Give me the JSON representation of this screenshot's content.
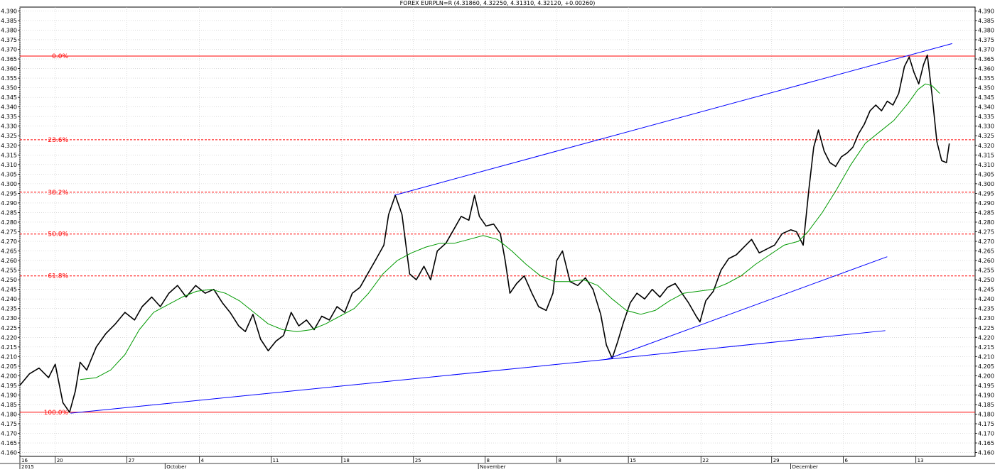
{
  "chart_data": {
    "type": "line",
    "title": "FOREX EURPLN=R (4.31860, 4.32250, 4.31310, 4.32120, +0.00260)",
    "grid": true,
    "ylim": [
      4.158,
      4.392
    ],
    "y_ticks": [
      "4.160",
      "4.165",
      "4.170",
      "4.175",
      "4.180",
      "4.185",
      "4.190",
      "4.195",
      "4.200",
      "4.205",
      "4.210",
      "4.215",
      "4.220",
      "4.225",
      "4.230",
      "4.235",
      "4.240",
      "4.245",
      "4.250",
      "4.255",
      "4.260",
      "4.265",
      "4.270",
      "4.275",
      "4.280",
      "4.285",
      "4.290",
      "4.295",
      "4.300",
      "4.305",
      "4.310",
      "4.315",
      "4.320",
      "4.325",
      "4.330",
      "4.335",
      "4.340",
      "4.345",
      "4.350",
      "4.355",
      "4.360",
      "4.365",
      "4.370",
      "4.375",
      "4.380",
      "4.385",
      "4.390"
    ],
    "x_range": [
      0,
      100
    ],
    "x_ticks": [
      {
        "label": "16",
        "x": 0
      },
      {
        "label": "20",
        "x": 3.7
      },
      {
        "label": "27",
        "x": 11.2
      },
      {
        "label": "4",
        "x": 18.8
      },
      {
        "label": "11",
        "x": 26.3
      },
      {
        "label": "18",
        "x": 33.7
      },
      {
        "label": "25",
        "x": 41.2
      },
      {
        "label": "8",
        "x": 48.7
      },
      {
        "label": "8",
        "x": 56.2
      },
      {
        "label": "15",
        "x": 63.7
      },
      {
        "label": "22",
        "x": 71.3
      },
      {
        "label": "29",
        "x": 78.7
      },
      {
        "label": "6",
        "x": 86.2
      },
      {
        "label": "13",
        "x": 93.8
      }
    ],
    "bottom_labels": [
      {
        "label": "2015",
        "x": 0
      },
      {
        "label": "October",
        "x": 15.2
      },
      {
        "label": "November",
        "x": 48.0
      },
      {
        "label": "December",
        "x": 80.7
      }
    ],
    "series": [
      {
        "color": "#000000",
        "points": [
          [
            0,
            4.195
          ],
          [
            1,
            4.201
          ],
          [
            2,
            4.204
          ],
          [
            3,
            4.199
          ],
          [
            3.7,
            4.206
          ],
          [
            4.5,
            4.186
          ],
          [
            5.2,
            4.181
          ],
          [
            5.8,
            4.192
          ],
          [
            6.3,
            4.207
          ],
          [
            7,
            4.203
          ],
          [
            8,
            4.215
          ],
          [
            9,
            4.222
          ],
          [
            10,
            4.227
          ],
          [
            11,
            4.233
          ],
          [
            12,
            4.229
          ],
          [
            12.8,
            4.236
          ],
          [
            13.8,
            4.241
          ],
          [
            14.7,
            4.236
          ],
          [
            15.6,
            4.243
          ],
          [
            16.5,
            4.247
          ],
          [
            17.4,
            4.241
          ],
          [
            18.4,
            4.247
          ],
          [
            19.4,
            4.243
          ],
          [
            20.3,
            4.245
          ],
          [
            21.2,
            4.238
          ],
          [
            22,
            4.233
          ],
          [
            22.9,
            4.226
          ],
          [
            23.6,
            4.223
          ],
          [
            24.4,
            4.232
          ],
          [
            25.2,
            4.219
          ],
          [
            26,
            4.213
          ],
          [
            26.8,
            4.218
          ],
          [
            27.6,
            4.221
          ],
          [
            28.4,
            4.233
          ],
          [
            29.2,
            4.226
          ],
          [
            30,
            4.229
          ],
          [
            30.8,
            4.224
          ],
          [
            31.6,
            4.231
          ],
          [
            32.4,
            4.229
          ],
          [
            33.2,
            4.236
          ],
          [
            34,
            4.233
          ],
          [
            34.8,
            4.243
          ],
          [
            35.6,
            4.246
          ],
          [
            36.4,
            4.253
          ],
          [
            37.2,
            4.26
          ],
          [
            38.1,
            4.268
          ],
          [
            38.6,
            4.284
          ],
          [
            39.3,
            4.294
          ],
          [
            40,
            4.284
          ],
          [
            40.8,
            4.253
          ],
          [
            41.5,
            4.25
          ],
          [
            42.3,
            4.257
          ],
          [
            43,
            4.25
          ],
          [
            43.7,
            4.265
          ],
          [
            44.6,
            4.269
          ],
          [
            45.4,
            4.276
          ],
          [
            46.2,
            4.283
          ],
          [
            47,
            4.281
          ],
          [
            47.6,
            4.294
          ],
          [
            48.1,
            4.283
          ],
          [
            48.8,
            4.278
          ],
          [
            49.6,
            4.279
          ],
          [
            50.3,
            4.274
          ],
          [
            50.8,
            4.26
          ],
          [
            51.3,
            4.243
          ],
          [
            52,
            4.248
          ],
          [
            52.8,
            4.252
          ],
          [
            53.6,
            4.243
          ],
          [
            54.3,
            4.236
          ],
          [
            55.1,
            4.234
          ],
          [
            55.8,
            4.243
          ],
          [
            56.2,
            4.26
          ],
          [
            56.8,
            4.265
          ],
          [
            57.6,
            4.249
          ],
          [
            58.4,
            4.247
          ],
          [
            59.2,
            4.251
          ],
          [
            60,
            4.245
          ],
          [
            60.8,
            4.232
          ],
          [
            61.4,
            4.216
          ],
          [
            62,
            4.209
          ],
          [
            62.6,
            4.218
          ],
          [
            63.2,
            4.228
          ],
          [
            63.9,
            4.238
          ],
          [
            64.6,
            4.243
          ],
          [
            65.4,
            4.24
          ],
          [
            66.2,
            4.245
          ],
          [
            67,
            4.241
          ],
          [
            67.8,
            4.246
          ],
          [
            68.6,
            4.248
          ],
          [
            69.3,
            4.243
          ],
          [
            70,
            4.238
          ],
          [
            70.8,
            4.231
          ],
          [
            71.2,
            4.228
          ],
          [
            71.8,
            4.239
          ],
          [
            72.6,
            4.244
          ],
          [
            73.4,
            4.255
          ],
          [
            74.2,
            4.261
          ],
          [
            75,
            4.263
          ],
          [
            75.8,
            4.267
          ],
          [
            76.6,
            4.271
          ],
          [
            77.4,
            4.264
          ],
          [
            78.2,
            4.266
          ],
          [
            79,
            4.268
          ],
          [
            79.8,
            4.274
          ],
          [
            80.7,
            4.276
          ],
          [
            81.3,
            4.275
          ],
          [
            82,
            4.268
          ],
          [
            82.6,
            4.297
          ],
          [
            83.1,
            4.319
          ],
          [
            83.6,
            4.328
          ],
          [
            84.2,
            4.317
          ],
          [
            84.8,
            4.311
          ],
          [
            85.4,
            4.309
          ],
          [
            86,
            4.314
          ],
          [
            86.6,
            4.316
          ],
          [
            87.2,
            4.319
          ],
          [
            87.8,
            4.326
          ],
          [
            88.4,
            4.331
          ],
          [
            89,
            4.338
          ],
          [
            89.6,
            4.341
          ],
          [
            90.2,
            4.338
          ],
          [
            90.8,
            4.343
          ],
          [
            91.4,
            4.341
          ],
          [
            92,
            4.347
          ],
          [
            92.6,
            4.361
          ],
          [
            93.1,
            4.366
          ],
          [
            93.6,
            4.358
          ],
          [
            94.1,
            4.352
          ],
          [
            94.6,
            4.362
          ],
          [
            95,
            4.367
          ],
          [
            95.5,
            4.346
          ],
          [
            96,
            4.322
          ],
          [
            96.5,
            4.312
          ],
          [
            97,
            4.311
          ],
          [
            97.3,
            4.321
          ]
        ]
      },
      {
        "color": "#009900",
        "points": [
          [
            6.3,
            4.198
          ],
          [
            8,
            4.199
          ],
          [
            9.5,
            4.203
          ],
          [
            11,
            4.211
          ],
          [
            12.5,
            4.224
          ],
          [
            14,
            4.233
          ],
          [
            15.5,
            4.237
          ],
          [
            17,
            4.241
          ],
          [
            18.5,
            4.244
          ],
          [
            20,
            4.245
          ],
          [
            21.5,
            4.243
          ],
          [
            23,
            4.239
          ],
          [
            24.5,
            4.233
          ],
          [
            26,
            4.227
          ],
          [
            27.5,
            4.224
          ],
          [
            29,
            4.223
          ],
          [
            30.5,
            4.224
          ],
          [
            32,
            4.227
          ],
          [
            33.5,
            4.231
          ],
          [
            35,
            4.235
          ],
          [
            36.5,
            4.243
          ],
          [
            38,
            4.253
          ],
          [
            39.5,
            4.26
          ],
          [
            41,
            4.264
          ],
          [
            42.5,
            4.267
          ],
          [
            44,
            4.269
          ],
          [
            45.5,
            4.269
          ],
          [
            47,
            4.271
          ],
          [
            48.5,
            4.273
          ],
          [
            50,
            4.271
          ],
          [
            51.5,
            4.265
          ],
          [
            53,
            4.258
          ],
          [
            54.5,
            4.252
          ],
          [
            56,
            4.249
          ],
          [
            57.5,
            4.249
          ],
          [
            59,
            4.25
          ],
          [
            60.5,
            4.247
          ],
          [
            62,
            4.24
          ],
          [
            63.5,
            4.234
          ],
          [
            65,
            4.232
          ],
          [
            66.5,
            4.234
          ],
          [
            68,
            4.239
          ],
          [
            69.5,
            4.243
          ],
          [
            71,
            4.244
          ],
          [
            72.5,
            4.245
          ],
          [
            74,
            4.248
          ],
          [
            75.5,
            4.252
          ],
          [
            77,
            4.258
          ],
          [
            78.5,
            4.263
          ],
          [
            80,
            4.268
          ],
          [
            81.5,
            4.27
          ],
          [
            82.5,
            4.275
          ],
          [
            84,
            4.285
          ],
          [
            85.5,
            4.297
          ],
          [
            87,
            4.31
          ],
          [
            88.5,
            4.321
          ],
          [
            90,
            4.327
          ],
          [
            91.5,
            4.333
          ],
          [
            93,
            4.342
          ],
          [
            94,
            4.349
          ],
          [
            94.8,
            4.352
          ],
          [
            95.5,
            4.351
          ],
          [
            96.3,
            4.347
          ]
        ]
      }
    ],
    "trendlines": [
      {
        "color": "#0000ff",
        "from": [
          5.3,
          4.1805
        ],
        "to": [
          61.4,
          4.2085
        ]
      },
      {
        "color": "#0000ff",
        "from": [
          39.2,
          4.294
        ],
        "to": [
          97.6,
          4.373
        ]
      },
      {
        "color": "#0000ff",
        "from": [
          61.4,
          4.2085
        ],
        "to": [
          90.8,
          4.262
        ]
      },
      {
        "color": "#0000ff",
        "from": [
          61.4,
          4.2085
        ],
        "to": [
          90.6,
          4.2235
        ]
      }
    ],
    "fib_levels": [
      {
        "label": "0.0%",
        "y": 4.3665,
        "style": "solid"
      },
      {
        "label": "23.6%",
        "y": 4.3229,
        "style": "dashed"
      },
      {
        "label": "38.2%",
        "y": 4.2956,
        "style": "dashed"
      },
      {
        "label": "50.0%",
        "y": 4.2738,
        "style": "dashed"
      },
      {
        "label": "61.8%",
        "y": 4.252,
        "style": "dashed"
      },
      {
        "label": "100.0%",
        "y": 4.181,
        "style": "solid"
      }
    ],
    "colors": {
      "grid": "#c8c8c8",
      "fib": "#ff0000",
      "price": "#000000",
      "ma": "#009900",
      "trend": "#0000ff"
    }
  }
}
